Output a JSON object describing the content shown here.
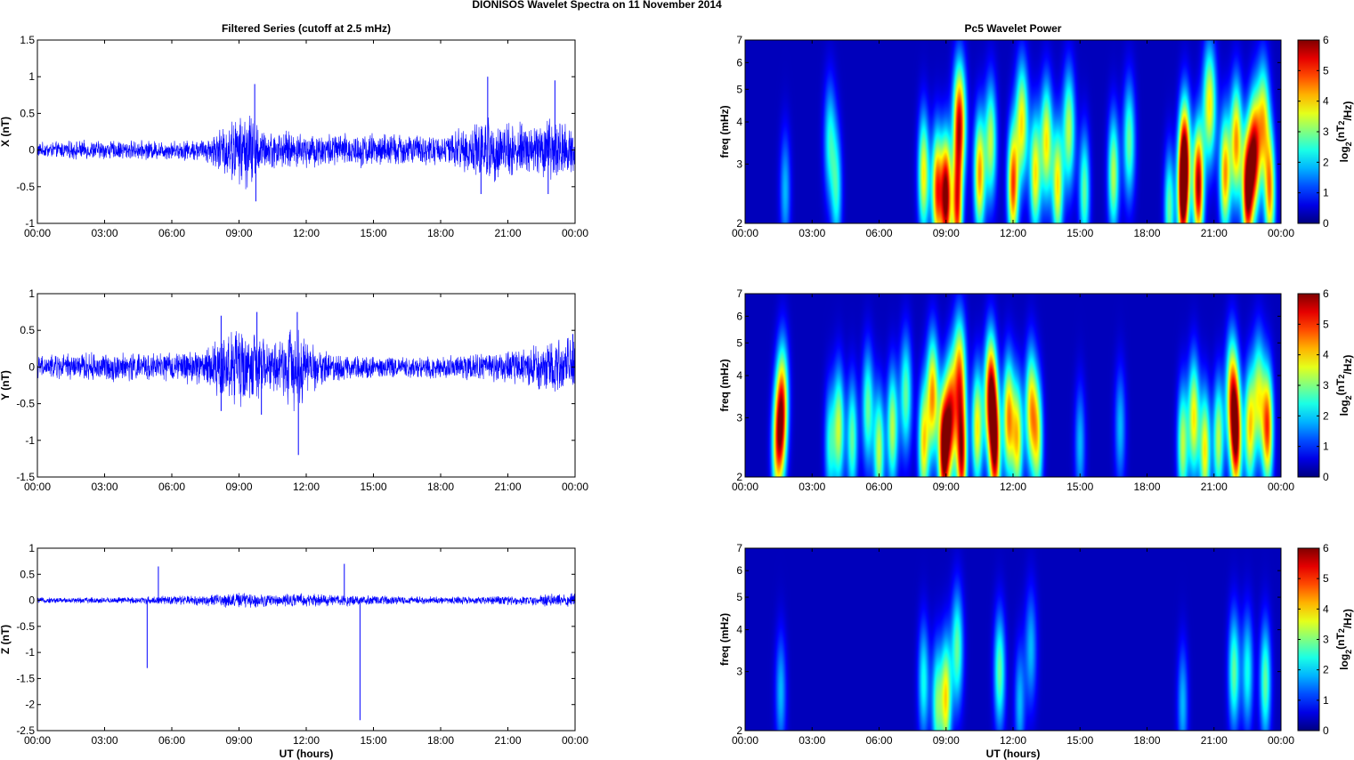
{
  "figure": {
    "suptitle": "DIONISOS Wavelet Spectra on 11 November  2014",
    "left_title": "Filtered Series (cutoff at 2.5 mHz)",
    "right_title": "Pc5 Wavelet Power",
    "xlabel": "UT (hours)"
  },
  "colors": {
    "trace": "#0000ff",
    "spectrogram_background": "#00008f",
    "colormap": "jet"
  },
  "chart_data": [
    {
      "type": "line",
      "name": "x-series",
      "ylabel": "X (nT)",
      "ylim": [
        -1,
        1.5
      ],
      "yticks": [
        "1.5",
        "1",
        "0.5",
        "0",
        "-0.5",
        "-1"
      ],
      "ytick_values": [
        1.5,
        1,
        0.5,
        0,
        -0.5,
        -1
      ],
      "xlim": [
        0,
        24
      ],
      "xticks": [
        "00:00",
        "03:00",
        "06:00",
        "09:00",
        "12:00",
        "15:00",
        "18:00",
        "21:00",
        "00:00"
      ],
      "envelope_hours": [
        0,
        2,
        4,
        6,
        7.5,
        8.5,
        9,
        9.5,
        10,
        11,
        12,
        14,
        16,
        18,
        19.5,
        20,
        21,
        22,
        23,
        24
      ],
      "envelope_amplitude": [
        0.08,
        0.1,
        0.1,
        0.1,
        0.12,
        0.3,
        0.35,
        0.45,
        0.2,
        0.2,
        0.18,
        0.18,
        0.18,
        0.15,
        0.3,
        0.35,
        0.3,
        0.3,
        0.35,
        0.3
      ],
      "spikes": [
        [
          9.7,
          0.9
        ],
        [
          9.75,
          -0.7
        ],
        [
          20.1,
          1.0
        ],
        [
          23.1,
          0.95
        ],
        [
          19.8,
          -0.6
        ],
        [
          22.8,
          -0.6
        ],
        [
          24,
          -0.5
        ]
      ]
    },
    {
      "type": "line",
      "name": "y-series",
      "ylabel": "Y (nT)",
      "ylim": [
        -1.5,
        1
      ],
      "yticks": [
        "1",
        "0.5",
        "0",
        "-0.5",
        "-1",
        "-1.5"
      ],
      "ytick_values": [
        1,
        0.5,
        0,
        -0.5,
        -1,
        -1.5
      ],
      "xlim": [
        0,
        24
      ],
      "xticks": [
        "00:00",
        "03:00",
        "06:00",
        "09:00",
        "12:00",
        "15:00",
        "18:00",
        "21:00",
        "00:00"
      ],
      "envelope_hours": [
        0,
        2,
        4,
        6,
        7.5,
        8.5,
        9,
        9.5,
        10,
        11,
        11.5,
        12,
        13,
        15,
        18,
        20,
        21,
        22,
        23,
        24
      ],
      "envelope_amplitude": [
        0.12,
        0.15,
        0.15,
        0.15,
        0.2,
        0.4,
        0.45,
        0.4,
        0.3,
        0.3,
        0.5,
        0.3,
        0.15,
        0.12,
        0.12,
        0.15,
        0.18,
        0.2,
        0.3,
        0.3
      ],
      "spikes": [
        [
          8.2,
          0.7
        ],
        [
          9.8,
          0.75
        ],
        [
          11.6,
          0.75
        ],
        [
          11.65,
          -1.2
        ],
        [
          8.2,
          -0.6
        ],
        [
          10,
          -0.65
        ],
        [
          24,
          -1.1
        ],
        [
          23.9,
          0.45
        ]
      ]
    },
    {
      "type": "line",
      "name": "z-series",
      "ylabel": "Z (nT)",
      "ylim": [
        -2.5,
        1
      ],
      "yticks": [
        "1",
        "0.5",
        "0",
        "-0.5",
        "-1",
        "-1.5",
        "-2",
        "-2.5"
      ],
      "ytick_values": [
        1,
        0.5,
        0,
        -0.5,
        -1,
        -1.5,
        -2,
        -2.5
      ],
      "xlim": [
        0,
        24
      ],
      "xticks": [
        "00:00",
        "03:00",
        "06:00",
        "09:00",
        "12:00",
        "15:00",
        "18:00",
        "21:00",
        "00:00"
      ],
      "envelope_hours": [
        0,
        4,
        7.5,
        9,
        10,
        12,
        14,
        16,
        20,
        22,
        24
      ],
      "envelope_amplitude": [
        0.04,
        0.05,
        0.08,
        0.12,
        0.1,
        0.1,
        0.08,
        0.06,
        0.06,
        0.08,
        0.12
      ],
      "spikes": [
        [
          4.9,
          -1.3
        ],
        [
          5.4,
          0.65
        ],
        [
          13.7,
          0.7
        ],
        [
          14.4,
          -2.3
        ],
        [
          24,
          -0.3
        ]
      ]
    },
    {
      "type": "heatmap",
      "name": "x-wavelet",
      "ylabel": "freq (mHz)",
      "colorbar_label": "log2(nT2/Hz)",
      "colorbar_ticks": [
        "6",
        "5",
        "4",
        "3",
        "2",
        "1",
        "0"
      ],
      "clim": [
        0,
        6
      ],
      "ylim": [
        2,
        7
      ],
      "yscale": "log",
      "yticks": [
        "7",
        "6",
        "5",
        "4",
        "3",
        "2"
      ],
      "ytick_values": [
        7,
        6,
        5,
        4,
        3,
        2
      ],
      "xlim": [
        0,
        24
      ],
      "xticks": [
        "00:00",
        "03:00",
        "06:00",
        "09:00",
        "12:00",
        "15:00",
        "18:00",
        "21:00",
        "00:00"
      ],
      "blobs": [
        [
          1.8,
          2.5,
          1.5
        ],
        [
          3.8,
          3.5,
          2
        ],
        [
          4.1,
          2.5,
          2
        ],
        [
          8,
          2.8,
          3.5
        ],
        [
          8.6,
          2.5,
          4.5
        ],
        [
          9.0,
          2.4,
          5.8
        ],
        [
          9.6,
          4,
          5
        ],
        [
          9.5,
          2.2,
          4.5
        ],
        [
          10.5,
          2.8,
          4
        ],
        [
          11,
          3.5,
          3
        ],
        [
          12,
          2.6,
          4.5
        ],
        [
          12.4,
          4,
          3.5
        ],
        [
          13,
          2.8,
          3.5
        ],
        [
          13.5,
          3.5,
          3.5
        ],
        [
          14,
          2.6,
          3.5
        ],
        [
          14.5,
          3.8,
          3
        ],
        [
          15.2,
          2.5,
          2.5
        ],
        [
          16.5,
          2.8,
          3
        ],
        [
          17.2,
          3.5,
          2.5
        ],
        [
          19,
          2.2,
          2.5
        ],
        [
          19.6,
          2.4,
          5
        ],
        [
          19.7,
          3.2,
          4.5
        ],
        [
          20.3,
          2.6,
          5.5
        ],
        [
          20.8,
          4.5,
          3.5
        ],
        [
          21.5,
          2.8,
          4
        ],
        [
          22,
          3.5,
          4
        ],
        [
          22.5,
          2.5,
          5.5
        ],
        [
          22.8,
          3.2,
          5
        ],
        [
          23.2,
          4,
          3.5
        ],
        [
          23.5,
          2.5,
          4
        ]
      ]
    },
    {
      "type": "heatmap",
      "name": "y-wavelet",
      "ylabel": "freq (mHz)",
      "colorbar_label": "log2(nT2/Hz)",
      "colorbar_ticks": [
        "6",
        "5",
        "4",
        "3",
        "2",
        "1",
        "0"
      ],
      "clim": [
        0,
        6
      ],
      "ylim": [
        2,
        7
      ],
      "yscale": "log",
      "yticks": [
        "7",
        "6",
        "5",
        "4",
        "3",
        "2"
      ],
      "ytick_values": [
        7,
        6,
        5,
        4,
        3,
        2
      ],
      "xlim": [
        0,
        24
      ],
      "xticks": [
        "00:00",
        "03:00",
        "06:00",
        "09:00",
        "12:00",
        "15:00",
        "18:00",
        "21:00",
        "00:00"
      ],
      "blobs": [
        [
          1.4,
          2.4,
          2.5
        ],
        [
          1.6,
          2.8,
          3.5
        ],
        [
          1.7,
          3.5,
          2.5
        ],
        [
          3.8,
          2.5,
          2
        ],
        [
          4.2,
          2.8,
          3
        ],
        [
          4.8,
          2.6,
          2.5
        ],
        [
          5.5,
          3.2,
          2.5
        ],
        [
          6,
          2.4,
          3
        ],
        [
          6.6,
          2.8,
          3
        ],
        [
          7.2,
          3.5,
          2.5
        ],
        [
          8,
          2.5,
          3.5
        ],
        [
          8.4,
          3.5,
          4
        ],
        [
          8.9,
          2.4,
          5.8
        ],
        [
          9.2,
          3,
          4.5
        ],
        [
          9.6,
          4,
          4
        ],
        [
          9.7,
          2.3,
          5
        ],
        [
          10.4,
          2.8,
          3.5
        ],
        [
          11,
          3.5,
          5.5
        ],
        [
          11.2,
          2.4,
          5
        ],
        [
          11.8,
          3,
          4
        ],
        [
          12.2,
          2.6,
          3.5
        ],
        [
          12.8,
          3.2,
          3.5
        ],
        [
          13.1,
          2.6,
          3
        ],
        [
          15,
          2.5,
          1.5
        ],
        [
          16.8,
          2.8,
          1.5
        ],
        [
          19.6,
          2.5,
          3
        ],
        [
          20.1,
          3,
          3.5
        ],
        [
          20.6,
          2.4,
          3.5
        ],
        [
          21.2,
          2.6,
          3
        ],
        [
          21.8,
          3.5,
          4
        ],
        [
          22,
          2.6,
          5
        ],
        [
          22.6,
          2.8,
          3.5
        ],
        [
          23,
          3.5,
          3
        ],
        [
          23.4,
          2.8,
          4.5
        ]
      ]
    },
    {
      "type": "heatmap",
      "name": "z-wavelet",
      "ylabel": "freq (mHz)",
      "colorbar_label": "log2(nT2/Hz)",
      "colorbar_ticks": [
        "6",
        "5",
        "4",
        "3",
        "2",
        "1",
        "0"
      ],
      "clim": [
        0,
        6
      ],
      "ylim": [
        2,
        7
      ],
      "yscale": "log",
      "yticks": [
        "7",
        "6",
        "5",
        "4",
        "3",
        "2"
      ],
      "ytick_values": [
        7,
        6,
        5,
        4,
        3,
        2
      ],
      "xlim": [
        0,
        24
      ],
      "xticks": [
        "00:00",
        "03:00",
        "06:00",
        "09:00",
        "12:00",
        "15:00",
        "18:00",
        "21:00",
        "00:00"
      ],
      "blobs": [
        [
          1.6,
          2.6,
          1.5
        ],
        [
          8,
          2.8,
          2
        ],
        [
          8.6,
          2.4,
          2.5
        ],
        [
          9,
          2.5,
          3.5
        ],
        [
          9.5,
          3.5,
          2.5
        ],
        [
          11.4,
          3,
          2.5
        ],
        [
          12.3,
          2.4,
          1.5
        ],
        [
          12.8,
          3.5,
          1.5
        ],
        [
          19.6,
          2.4,
          1.5
        ],
        [
          21.9,
          3,
          2.5
        ],
        [
          22.5,
          3,
          2
        ],
        [
          23.3,
          2.8,
          2.5
        ]
      ]
    }
  ]
}
